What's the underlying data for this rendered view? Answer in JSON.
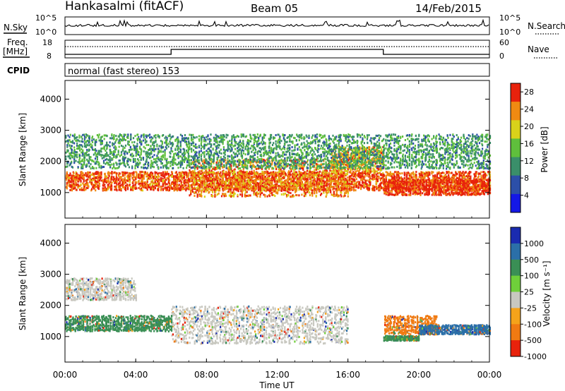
{
  "header": {
    "station": "Hankasalmi (fitACF)",
    "beam": "Beam 05",
    "date": "14/Feb/2015"
  },
  "noise_panel": {
    "left_label": "N.Sky",
    "right_label": "N.Search",
    "left_ticks": [
      "10^5",
      "10^0"
    ],
    "right_ticks": [
      "10^5",
      "10^0"
    ]
  },
  "freq_panel": {
    "left_label_line1": "Freq.",
    "left_label_line2": "[MHz]",
    "right_label": "Nave",
    "left_ticks": [
      "18",
      "8"
    ],
    "right_ticks": [
      "60",
      "0"
    ]
  },
  "cpid_panel": {
    "label": "CPID",
    "text": "normal (fast stereo) 153"
  },
  "chart_data": [
    {
      "type": "heatmap",
      "title": "",
      "xlabel": "",
      "ylabel": "Slant Range [km]",
      "x_ticks": [
        "00:00",
        "04:00",
        "08:00",
        "12:00",
        "16:00",
        "20:00",
        "00:00"
      ],
      "xlim_hours": [
        0,
        24
      ],
      "y_ticks": [
        1000,
        2000,
        3000,
        4000
      ],
      "ylim": [
        180,
        4600
      ],
      "colorbar_label": "Power [dB]",
      "colorbar_ticks": [
        4,
        8,
        12,
        16,
        20,
        24,
        28
      ],
      "colorbar_range": [
        0,
        30
      ],
      "colors": [
        "#1418e6",
        "#2c4fa8",
        "#3a8f6a",
        "#5fbf3c",
        "#d9d21a",
        "#f08a12",
        "#e8220c"
      ],
      "features": [
        {
          "t_start": 0,
          "t_end": 24,
          "range_low": 1100,
          "range_high": 1700,
          "level": 26
        },
        {
          "t_start": 7,
          "t_end": 16,
          "range_low": 900,
          "range_high": 2100,
          "level": 24
        },
        {
          "t_start": 15,
          "t_end": 18,
          "range_low": 1700,
          "range_high": 2500,
          "level": 22
        },
        {
          "t_start": 18,
          "t_end": 24,
          "range_low": 950,
          "range_high": 1450,
          "level": 28
        },
        {
          "t_start": 0,
          "t_end": 24,
          "range_low": 1800,
          "range_high": 2900,
          "level": 12
        }
      ]
    },
    {
      "type": "heatmap",
      "title": "",
      "xlabel": "Time UT",
      "ylabel": "Slant Range [km]",
      "x_ticks": [
        "00:00",
        "04:00",
        "08:00",
        "12:00",
        "16:00",
        "20:00",
        "00:00"
      ],
      "xlim_hours": [
        0,
        24
      ],
      "y_ticks": [
        1000,
        2000,
        3000,
        4000
      ],
      "ylim": [
        180,
        4600
      ],
      "colorbar_label": "Velocity [m s⁻¹]",
      "colorbar_ticks": [
        1000,
        500,
        100,
        25,
        -25,
        -100,
        -500,
        -1000
      ],
      "colors": [
        "#1a2bb0",
        "#2b6fa8",
        "#3a8f55",
        "#6fcf3a",
        "#c8c8c0",
        "#f5a31a",
        "#f07a12",
        "#e8220c"
      ],
      "features": [
        {
          "t_start": 6,
          "t_end": 16,
          "range_low": 800,
          "range_high": 2000,
          "level": 0
        },
        {
          "t_start": 0,
          "t_end": 6,
          "range_low": 1200,
          "range_high": 1700,
          "level": 100
        },
        {
          "t_start": 0,
          "t_end": 4,
          "range_low": 2200,
          "range_high": 2900,
          "level": 0
        },
        {
          "t_start": 18,
          "t_end": 21,
          "range_low": 1100,
          "range_high": 1700,
          "level": -500
        },
        {
          "t_start": 18,
          "t_end": 20,
          "range_low": 900,
          "range_high": 1050,
          "level": 100
        },
        {
          "t_start": 20,
          "t_end": 24,
          "range_low": 1100,
          "range_high": 1400,
          "level": 500
        }
      ]
    }
  ]
}
